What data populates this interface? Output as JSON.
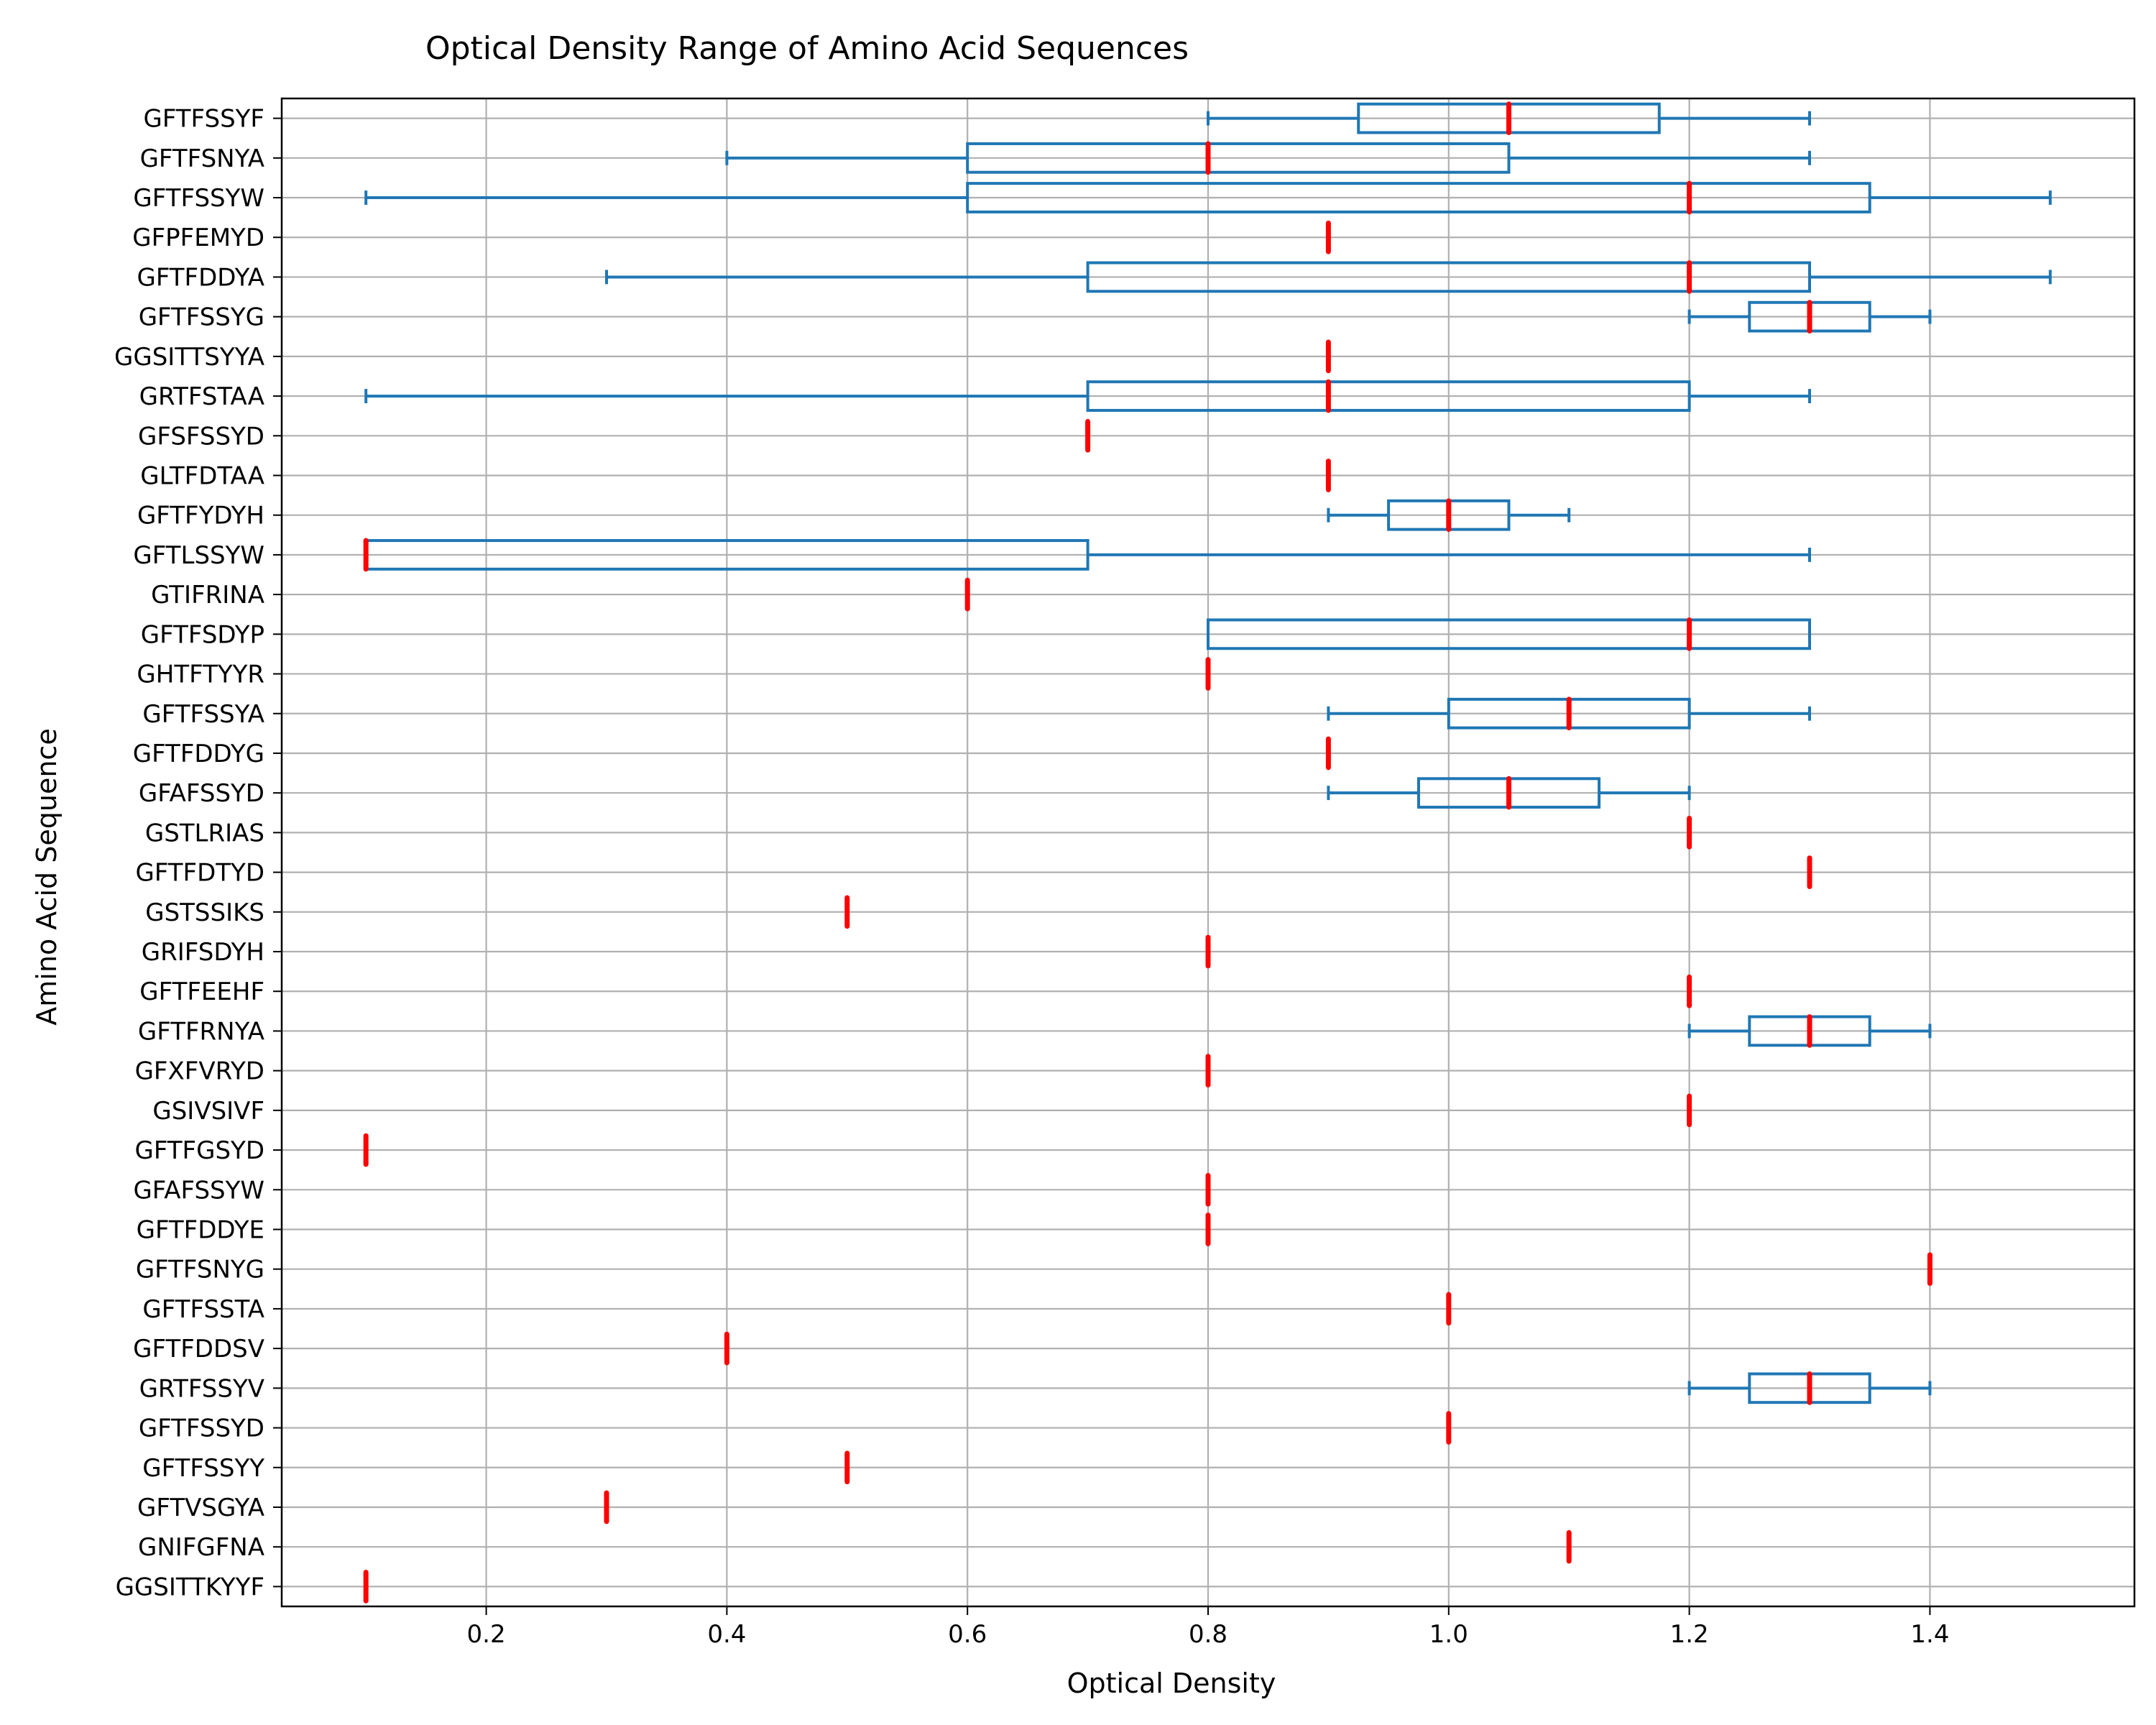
{
  "chart_data": {
    "type": "boxplot",
    "orientation": "horizontal",
    "title": "Optical Density Range of Amino Acid Sequences",
    "xlabel": "Optical Density",
    "ylabel": "Amino Acid Sequence",
    "xlim": [
      0.03,
      1.57
    ],
    "xticks": [
      0.2,
      0.4,
      0.6,
      0.8,
      1.0,
      1.2,
      1.4
    ],
    "xtick_labels": [
      "0.2",
      "0.4",
      "0.6",
      "0.8",
      "1.0",
      "1.2",
      "1.4"
    ],
    "grid": true,
    "colors": {
      "box": "#1f77b4",
      "median": "#ff0000",
      "grid": "#b0b0b0"
    },
    "categories": [
      {
        "label": "GFTFSSYF",
        "min": 0.8,
        "q1": 0.925,
        "median": 1.05,
        "q3": 1.175,
        "max": 1.3
      },
      {
        "label": "GFTFSNYA",
        "min": 0.4,
        "q1": 0.6,
        "median": 0.8,
        "q3": 1.05,
        "max": 1.3
      },
      {
        "label": "GFTFSSYW",
        "min": 0.1,
        "q1": 0.6,
        "median": 1.2,
        "q3": 1.35,
        "max": 1.5
      },
      {
        "label": "GFPFEMYD",
        "min": 0.9,
        "q1": 0.9,
        "median": 0.9,
        "q3": 0.9,
        "max": 0.9
      },
      {
        "label": "GFTFDDYA",
        "min": 0.3,
        "q1": 0.7,
        "median": 1.2,
        "q3": 1.3,
        "max": 1.5
      },
      {
        "label": "GFTFSSYG",
        "min": 1.2,
        "q1": 1.25,
        "median": 1.3,
        "q3": 1.35,
        "max": 1.4
      },
      {
        "label": "GGSITTSYYA",
        "min": 0.9,
        "q1": 0.9,
        "median": 0.9,
        "q3": 0.9,
        "max": 0.9
      },
      {
        "label": "GRTFSTAA",
        "min": 0.1,
        "q1": 0.7,
        "median": 0.9,
        "q3": 1.2,
        "max": 1.3
      },
      {
        "label": "GFSFSSYD",
        "min": 0.7,
        "q1": 0.7,
        "median": 0.7,
        "q3": 0.7,
        "max": 0.7
      },
      {
        "label": "GLTFDTAA",
        "min": 0.9,
        "q1": 0.9,
        "median": 0.9,
        "q3": 0.9,
        "max": 0.9
      },
      {
        "label": "GFTFYDYH",
        "min": 0.9,
        "q1": 0.95,
        "median": 1.0,
        "q3": 1.05,
        "max": 1.1
      },
      {
        "label": "GFTLSSYW",
        "min": 0.1,
        "q1": 0.1,
        "median": 0.1,
        "q3": 0.7,
        "max": 1.3
      },
      {
        "label": "GTIFRINA",
        "min": 0.6,
        "q1": 0.6,
        "median": 0.6,
        "q3": 0.6,
        "max": 0.6
      },
      {
        "label": "GFTFSDYP",
        "min": 0.8,
        "q1": 0.8,
        "median": 1.2,
        "q3": 1.3,
        "max": 1.3
      },
      {
        "label": "GHTFTYYR",
        "min": 0.8,
        "q1": 0.8,
        "median": 0.8,
        "q3": 0.8,
        "max": 0.8
      },
      {
        "label": "GFTFSSYA",
        "min": 0.9,
        "q1": 1.0,
        "median": 1.1,
        "q3": 1.2,
        "max": 1.3
      },
      {
        "label": "GFTFDDYG",
        "min": 0.9,
        "q1": 0.9,
        "median": 0.9,
        "q3": 0.9,
        "max": 0.9
      },
      {
        "label": "GFAFSSYD",
        "min": 0.9,
        "q1": 0.975,
        "median": 1.05,
        "q3": 1.125,
        "max": 1.2
      },
      {
        "label": "GSTLRIAS",
        "min": 1.2,
        "q1": 1.2,
        "median": 1.2,
        "q3": 1.2,
        "max": 1.2
      },
      {
        "label": "GFTFDTYD",
        "min": 1.3,
        "q1": 1.3,
        "median": 1.3,
        "q3": 1.3,
        "max": 1.3
      },
      {
        "label": "GSTSSIKS",
        "min": 0.5,
        "q1": 0.5,
        "median": 0.5,
        "q3": 0.5,
        "max": 0.5
      },
      {
        "label": "GRIFSDYH",
        "min": 0.8,
        "q1": 0.8,
        "median": 0.8,
        "q3": 0.8,
        "max": 0.8
      },
      {
        "label": "GFTFEEHF",
        "min": 1.2,
        "q1": 1.2,
        "median": 1.2,
        "q3": 1.2,
        "max": 1.2
      },
      {
        "label": "GFTFRNYA",
        "min": 1.2,
        "q1": 1.25,
        "median": 1.3,
        "q3": 1.35,
        "max": 1.4
      },
      {
        "label": "GFXFVRYD",
        "min": 0.8,
        "q1": 0.8,
        "median": 0.8,
        "q3": 0.8,
        "max": 0.8
      },
      {
        "label": "GSIVSIVF",
        "min": 1.2,
        "q1": 1.2,
        "median": 1.2,
        "q3": 1.2,
        "max": 1.2
      },
      {
        "label": "GFTFGSYD",
        "min": 0.1,
        "q1": 0.1,
        "median": 0.1,
        "q3": 0.1,
        "max": 0.1
      },
      {
        "label": "GFAFSSYW",
        "min": 0.8,
        "q1": 0.8,
        "median": 0.8,
        "q3": 0.8,
        "max": 0.8
      },
      {
        "label": "GFTFDDYE",
        "min": 0.8,
        "q1": 0.8,
        "median": 0.8,
        "q3": 0.8,
        "max": 0.8
      },
      {
        "label": "GFTFSNYG",
        "min": 1.4,
        "q1": 1.4,
        "median": 1.4,
        "q3": 1.4,
        "max": 1.4
      },
      {
        "label": "GFTFSSTA",
        "min": 1.0,
        "q1": 1.0,
        "median": 1.0,
        "q3": 1.0,
        "max": 1.0
      },
      {
        "label": "GFTFDDSV",
        "min": 0.4,
        "q1": 0.4,
        "median": 0.4,
        "q3": 0.4,
        "max": 0.4
      },
      {
        "label": "GRTFSSYV",
        "min": 1.2,
        "q1": 1.25,
        "median": 1.3,
        "q3": 1.35,
        "max": 1.4
      },
      {
        "label": "GFTFSSYD",
        "min": 1.0,
        "q1": 1.0,
        "median": 1.0,
        "q3": 1.0,
        "max": 1.0
      },
      {
        "label": "GFTFSSYY",
        "min": 0.5,
        "q1": 0.5,
        "median": 0.5,
        "q3": 0.5,
        "max": 0.5
      },
      {
        "label": "GFTVSGYA",
        "min": 0.3,
        "q1": 0.3,
        "median": 0.3,
        "q3": 0.3,
        "max": 0.3
      },
      {
        "label": "GNIFGFNA",
        "min": 1.1,
        "q1": 1.1,
        "median": 1.1,
        "q3": 1.1,
        "max": 1.1
      },
      {
        "label": "GGSITTKYYF",
        "min": 0.1,
        "q1": 0.1,
        "median": 0.1,
        "q3": 0.1,
        "max": 0.1
      }
    ]
  }
}
